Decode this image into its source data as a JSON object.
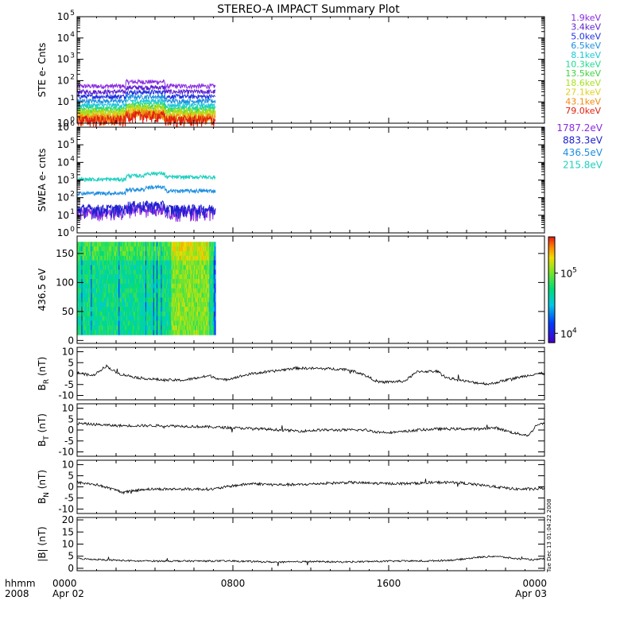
{
  "title": "STEREO-A IMPACT Summary Plot",
  "footer": {
    "time_label": "hhmm",
    "year_label": "2008",
    "ticks": [
      {
        "time": "0000",
        "date": "Apr 02",
        "hour": 0
      },
      {
        "time": "0800",
        "date": "",
        "hour": 8
      },
      {
        "time": "1600",
        "date": "",
        "hour": 16
      },
      {
        "time": "0000",
        "date": "Apr 03",
        "hour": 24
      }
    ],
    "side_stamp": "Tue Dec 13 01:04:22 2008"
  },
  "chart_data": [
    {
      "id": "ste",
      "type": "line",
      "ylabel": "STE e- Cnts",
      "yscale": "log",
      "ylim": [
        1,
        100000
      ],
      "yticks": [
        {
          "v": 1,
          "t": "10",
          "e": "0"
        },
        {
          "v": 10,
          "t": "10",
          "e": "1"
        },
        {
          "v": 100,
          "t": "10",
          "e": "2"
        },
        {
          "v": 1000,
          "t": "10",
          "e": "3"
        },
        {
          "v": 10000,
          "t": "10",
          "e": "4"
        },
        {
          "v": 100000,
          "t": "10",
          "e": "5"
        }
      ],
      "x_range_hours": [
        0,
        24
      ],
      "data_span_hours": [
        0,
        7.1
      ],
      "series": [
        {
          "name": "1.9keV",
          "color": "#8a2be2",
          "base": 55
        },
        {
          "name": "3.4keV",
          "color": "#5a1fd0",
          "base": 30
        },
        {
          "name": "5.0keV",
          "color": "#2030e0",
          "base": 18
        },
        {
          "name": "6.5keV",
          "color": "#1f8fe0",
          "base": 11
        },
        {
          "name": "8.1keV",
          "color": "#20c8d8",
          "base": 7
        },
        {
          "name": "10.3keV",
          "color": "#20d890",
          "base": 5
        },
        {
          "name": "13.5keV",
          "color": "#40d040",
          "base": 3.6
        },
        {
          "name": "18.6keV",
          "color": "#a8e020",
          "base": 2.6
        },
        {
          "name": "27.1keV",
          "color": "#e0d020",
          "base": 1.9
        },
        {
          "name": "43.1keV",
          "color": "#f08a10",
          "base": 1.5
        },
        {
          "name": "79.0keV",
          "color": "#e02010",
          "base": 1.2
        }
      ]
    },
    {
      "id": "swea",
      "type": "line",
      "ylabel": "SWEA e- cnts",
      "yscale": "log",
      "ylim": [
        1,
        1000000
      ],
      "yticks": [
        {
          "v": 1,
          "t": "10",
          "e": "0"
        },
        {
          "v": 10,
          "t": "10",
          "e": "1"
        },
        {
          "v": 100,
          "t": "10",
          "e": "2"
        },
        {
          "v": 1000,
          "t": "10",
          "e": "3"
        },
        {
          "v": 10000,
          "t": "10",
          "e": "4"
        },
        {
          "v": 100000,
          "t": "10",
          "e": "5"
        },
        {
          "v": 1000000,
          "t": "10",
          "e": "6"
        }
      ],
      "x_range_hours": [
        0,
        24
      ],
      "data_span_hours": [
        0,
        7.1
      ],
      "series": [
        {
          "name": "1787.2eV",
          "color": "#8a2be2",
          "base": 12
        },
        {
          "name": "883.3eV",
          "color": "#2020d0",
          "base": 18
        },
        {
          "name": "436.5eV",
          "color": "#1f8fe0",
          "base": 180
        },
        {
          "name": "215.8eV",
          "color": "#20d0c0",
          "base": 1100
        }
      ]
    },
    {
      "id": "pad",
      "type": "heatmap",
      "ylabel": "436.5 eV",
      "ylim": [
        -5,
        180
      ],
      "yticks": [
        {
          "v": 0,
          "t": "0"
        },
        {
          "v": 50,
          "t": "50"
        },
        {
          "v": 100,
          "t": "100"
        },
        {
          "v": 150,
          "t": "150"
        }
      ],
      "x_range_hours": [
        0,
        24
      ],
      "data_span_hours": [
        0,
        7.1
      ],
      "colorbar": {
        "ticks": [
          {
            "v": 10000,
            "t": "10",
            "e": "4"
          },
          {
            "v": 100000,
            "t": "10",
            "e": "5"
          }
        ],
        "range": [
          7000,
          400000
        ]
      }
    },
    {
      "id": "br",
      "type": "line",
      "ylabel": "B",
      "ylabel_sub": "R",
      "yunit": " (nT)",
      "ylim": [
        -12,
        12
      ],
      "yticks": [
        {
          "v": -10,
          "t": "-10"
        },
        {
          "v": -5,
          "t": "-5"
        },
        {
          "v": 0,
          "t": "0"
        },
        {
          "v": 5,
          "t": "5"
        },
        {
          "v": 10,
          "t": "10"
        }
      ],
      "x_range_hours": [
        0,
        24
      ],
      "anchors": [
        [
          0,
          0.5
        ],
        [
          0.8,
          -1
        ],
        [
          1.5,
          3.5
        ],
        [
          2.1,
          0
        ],
        [
          3.2,
          -2
        ],
        [
          4.5,
          -3
        ],
        [
          5.5,
          -3
        ],
        [
          6.8,
          -1
        ],
        [
          7.5,
          -3
        ],
        [
          9,
          0
        ],
        [
          10,
          1
        ],
        [
          11.2,
          2.5
        ],
        [
          12.5,
          2.3
        ],
        [
          13.8,
          2
        ],
        [
          14.6,
          0
        ],
        [
          15.5,
          -4
        ],
        [
          16.8,
          -3.5
        ],
        [
          17.5,
          1
        ],
        [
          18.5,
          1
        ],
        [
          19,
          -2
        ],
        [
          20.3,
          -4
        ],
        [
          21.2,
          -4.8
        ],
        [
          22,
          -3
        ],
        [
          23.6,
          0
        ],
        [
          24,
          0
        ]
      ]
    },
    {
      "id": "bt",
      "type": "line",
      "ylabel": "B",
      "ylabel_sub": "T",
      "yunit": " (nT)",
      "ylim": [
        -12,
        12
      ],
      "yticks": [
        {
          "v": -10,
          "t": "-10"
        },
        {
          "v": -5,
          "t": "-5"
        },
        {
          "v": 0,
          "t": "0"
        },
        {
          "v": 5,
          "t": "5"
        },
        {
          "v": 10,
          "t": "10"
        }
      ],
      "x_range_hours": [
        0,
        24
      ],
      "anchors": [
        [
          0,
          3
        ],
        [
          1,
          2.5
        ],
        [
          2,
          2
        ],
        [
          3,
          2
        ],
        [
          4.5,
          2
        ],
        [
          6.5,
          1.5
        ],
        [
          8,
          1
        ],
        [
          9.5,
          0.5
        ],
        [
          10.5,
          0
        ],
        [
          11.5,
          -0.5
        ],
        [
          12.5,
          0
        ],
        [
          13.5,
          0
        ],
        [
          14.8,
          0
        ],
        [
          15.5,
          -1
        ],
        [
          16.5,
          -1
        ],
        [
          17.5,
          0
        ],
        [
          18.5,
          0.5
        ],
        [
          19.5,
          0.5
        ],
        [
          20.5,
          0.5
        ],
        [
          21.5,
          1
        ],
        [
          22.5,
          -1.5
        ],
        [
          23.2,
          -2.5
        ],
        [
          23.6,
          2.5
        ],
        [
          24,
          3
        ]
      ]
    },
    {
      "id": "bn",
      "type": "line",
      "ylabel": "B",
      "ylabel_sub": "N",
      "yunit": " (nT)",
      "ylim": [
        -12,
        12
      ],
      "yticks": [
        {
          "v": -10,
          "t": "-10"
        },
        {
          "v": -5,
          "t": "-5"
        },
        {
          "v": 0,
          "t": "0"
        },
        {
          "v": 5,
          "t": "5"
        },
        {
          "v": 10,
          "t": "10"
        }
      ],
      "x_range_hours": [
        0,
        24
      ],
      "anchors": [
        [
          0,
          2
        ],
        [
          1,
          1
        ],
        [
          1.8,
          -1
        ],
        [
          2.4,
          -2.5
        ],
        [
          3.5,
          -1
        ],
        [
          5,
          -1
        ],
        [
          7,
          -1
        ],
        [
          8,
          0.5
        ],
        [
          9,
          1.5
        ],
        [
          10,
          1
        ],
        [
          11.5,
          1
        ],
        [
          12.5,
          1.5
        ],
        [
          14,
          2
        ],
        [
          15.5,
          1.5
        ],
        [
          17,
          1.5
        ],
        [
          18.5,
          2
        ],
        [
          19.5,
          2
        ],
        [
          20.5,
          1
        ],
        [
          21.5,
          0
        ],
        [
          22.5,
          -1
        ],
        [
          23.5,
          -1
        ],
        [
          24,
          -0.5
        ]
      ]
    },
    {
      "id": "bmag",
      "type": "line",
      "ylabel": "|B| (nT)",
      "ylim": [
        -1,
        21
      ],
      "yticks": [
        {
          "v": 0,
          "t": "0"
        },
        {
          "v": 5,
          "t": "5"
        },
        {
          "v": 10,
          "t": "10"
        },
        {
          "v": 15,
          "t": "15"
        },
        {
          "v": 20,
          "t": "20"
        }
      ],
      "x_range_hours": [
        0,
        24
      ],
      "anchors": [
        [
          0,
          4
        ],
        [
          1.5,
          3.5
        ],
        [
          3,
          3
        ],
        [
          4.5,
          3
        ],
        [
          6,
          3
        ],
        [
          8,
          3
        ],
        [
          9.5,
          2.7
        ],
        [
          10.5,
          2.5
        ],
        [
          12,
          2.8
        ],
        [
          13.5,
          2.6
        ],
        [
          15,
          2.8
        ],
        [
          16.5,
          3
        ],
        [
          18,
          3
        ],
        [
          19.5,
          3.5
        ],
        [
          20.5,
          4.5
        ],
        [
          21.5,
          5
        ],
        [
          22.5,
          4
        ],
        [
          23.5,
          3.5
        ],
        [
          24,
          4
        ]
      ]
    }
  ]
}
